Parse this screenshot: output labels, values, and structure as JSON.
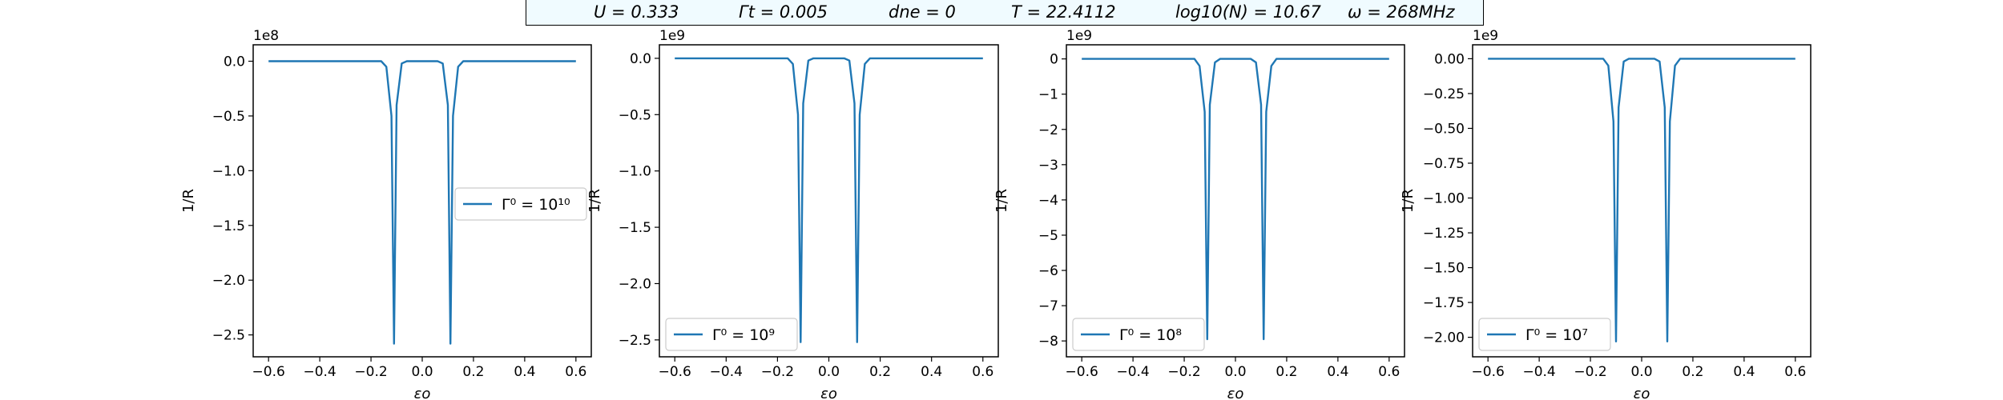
{
  "header": {
    "params": [
      "U = 0.333",
      "Γt = 0.005",
      "dne = 0",
      "T = 22.4112",
      "log10(N) = 10.67",
      "ω = 268MHz"
    ]
  },
  "chart_data": [
    {
      "type": "line",
      "xlabel": "εo",
      "ylabel": "1/R",
      "xlim": [
        -0.66,
        0.66
      ],
      "ylim": [
        -2.7,
        0.15
      ],
      "scale_label": "1e8",
      "yticks": [
        0.0,
        -0.5,
        -1.0,
        -1.5,
        -2.0,
        -2.5
      ],
      "ytick_labels": [
        "0.0",
        "−0.5",
        "−1.0",
        "−1.5",
        "−2.0",
        "−2.5"
      ],
      "xticks": [
        -0.6,
        -0.4,
        -0.2,
        0.0,
        0.2,
        0.4,
        0.6
      ],
      "xtick_labels": [
        "−0.6",
        "−0.4",
        "−0.2",
        "0.0",
        "0.2",
        "0.4",
        "0.6"
      ],
      "legend": "Γ⁰ = 10¹⁰",
      "legend_position": "center-right",
      "series": [
        {
          "x": [
            -0.6,
            -0.16,
            -0.14,
            -0.12,
            -0.11,
            -0.1,
            -0.08,
            -0.06,
            0.06,
            0.08,
            0.1,
            0.11,
            0.12,
            0.14,
            0.16,
            0.6
          ],
          "y": [
            0,
            0,
            -0.05,
            -0.5,
            -2.58,
            -0.4,
            -0.02,
            0,
            0,
            -0.02,
            -0.4,
            -2.58,
            -0.5,
            -0.05,
            0,
            0
          ]
        }
      ]
    },
    {
      "type": "line",
      "xlabel": "εo",
      "ylabel": "1/R",
      "xlim": [
        -0.66,
        0.66
      ],
      "ylim": [
        -2.65,
        0.12
      ],
      "scale_label": "1e9",
      "yticks": [
        0.0,
        -0.5,
        -1.0,
        -1.5,
        -2.0,
        -2.5
      ],
      "ytick_labels": [
        "0.0",
        "−0.5",
        "−1.0",
        "−1.5",
        "−2.0",
        "−2.5"
      ],
      "xticks": [
        -0.6,
        -0.4,
        -0.2,
        0.0,
        0.2,
        0.4,
        0.6
      ],
      "xtick_labels": [
        "−0.6",
        "−0.4",
        "−0.2",
        "0.0",
        "0.2",
        "0.4",
        "0.6"
      ],
      "legend": "Γ⁰ = 10⁹",
      "legend_position": "lower-left",
      "series": [
        {
          "x": [
            -0.6,
            -0.16,
            -0.14,
            -0.12,
            -0.11,
            -0.1,
            -0.08,
            -0.06,
            0.06,
            0.08,
            0.1,
            0.11,
            0.12,
            0.14,
            0.16,
            0.6
          ],
          "y": [
            0,
            0,
            -0.05,
            -0.5,
            -2.52,
            -0.4,
            -0.02,
            0,
            0,
            -0.02,
            -0.4,
            -2.52,
            -0.5,
            -0.05,
            0,
            0
          ]
        }
      ]
    },
    {
      "type": "line",
      "xlabel": "εo",
      "ylabel": "1/R",
      "xlim": [
        -0.66,
        0.66
      ],
      "ylim": [
        -8.45,
        0.4
      ],
      "scale_label": "1e9",
      "yticks": [
        0,
        -1,
        -2,
        -3,
        -4,
        -5,
        -6,
        -7,
        -8
      ],
      "ytick_labels": [
        "0",
        "−1",
        "−2",
        "−3",
        "−4",
        "−5",
        "−6",
        "−7",
        "−8"
      ],
      "xticks": [
        -0.6,
        -0.4,
        -0.2,
        0.0,
        0.2,
        0.4,
        0.6
      ],
      "xtick_labels": [
        "−0.6",
        "−0.4",
        "−0.2",
        "0.0",
        "0.2",
        "0.4",
        "0.6"
      ],
      "legend": "Γ⁰ = 10⁸",
      "legend_position": "lower-left",
      "series": [
        {
          "x": [
            -0.6,
            -0.16,
            -0.14,
            -0.12,
            -0.11,
            -0.1,
            -0.08,
            -0.06,
            0.06,
            0.08,
            0.1,
            0.11,
            0.12,
            0.14,
            0.16,
            0.6
          ],
          "y": [
            0,
            0,
            -0.2,
            -1.5,
            -7.95,
            -1.3,
            -0.1,
            0,
            0,
            -0.1,
            -1.3,
            -7.95,
            -1.5,
            -0.2,
            0,
            0
          ]
        }
      ]
    },
    {
      "type": "line",
      "xlabel": "εo",
      "ylabel": "1/R",
      "xlim": [
        -0.66,
        0.66
      ],
      "ylim": [
        -2.14,
        0.1
      ],
      "scale_label": "1e9",
      "yticks": [
        0.0,
        -0.25,
        -0.5,
        -0.75,
        -1.0,
        -1.25,
        -1.5,
        -1.75,
        -2.0
      ],
      "ytick_labels": [
        "0.00",
        "−0.25",
        "−0.50",
        "−0.75",
        "−1.00",
        "−1.25",
        "−1.50",
        "−1.75",
        "−2.00"
      ],
      "xticks": [
        -0.6,
        -0.4,
        -0.2,
        0.0,
        0.2,
        0.4,
        0.6
      ],
      "xtick_labels": [
        "−0.6",
        "−0.4",
        "−0.2",
        "0.0",
        "0.2",
        "0.4",
        "0.6"
      ],
      "legend": "Γ⁰ = 10⁷",
      "legend_position": "lower-left",
      "series": [
        {
          "x": [
            -0.6,
            -0.15,
            -0.13,
            -0.11,
            -0.1,
            -0.09,
            -0.07,
            -0.05,
            0.05,
            0.07,
            0.09,
            0.1,
            0.11,
            0.13,
            0.15,
            0.6
          ],
          "y": [
            0,
            0,
            -0.05,
            -0.45,
            -2.03,
            -0.35,
            -0.02,
            0,
            0,
            -0.02,
            -0.35,
            -2.03,
            -0.45,
            -0.05,
            0,
            0
          ]
        }
      ]
    }
  ]
}
